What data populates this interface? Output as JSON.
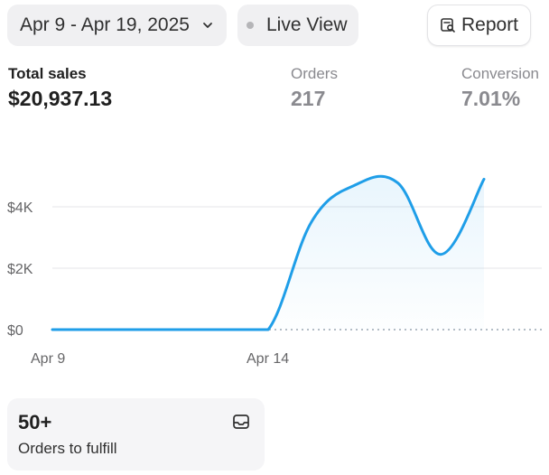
{
  "toolbar": {
    "date_range": "Apr 9 - Apr 19, 2025",
    "live_view": "Live View",
    "report": "Report"
  },
  "metrics": {
    "total_sales": {
      "label": "Total sales",
      "value": "$20,937.13"
    },
    "orders": {
      "label": "Orders",
      "value": "217"
    },
    "conversion": {
      "label": "Conversion",
      "value": "7.01%"
    }
  },
  "chart_data": {
    "type": "area",
    "title": "",
    "xlabel": "",
    "ylabel": "",
    "x_ticks": [
      "Apr 9",
      "Apr 14"
    ],
    "y_ticks": [
      "$0",
      "$2K",
      "$4K"
    ],
    "y_tick_values": [
      0,
      2000,
      4000
    ],
    "ylim": [
      0,
      5000
    ],
    "grid": true,
    "series_color": "#1f9ee8",
    "points": [
      {
        "x": 0,
        "y": 0
      },
      {
        "x": 1,
        "y": 0
      },
      {
        "x": 2,
        "y": 0
      },
      {
        "x": 3,
        "y": 0
      },
      {
        "x": 4,
        "y": 0
      },
      {
        "x": 5,
        "y": 0
      },
      {
        "x": 6,
        "y": 3500
      },
      {
        "x": 7,
        "y": 4700
      },
      {
        "x": 8,
        "y": 4780
      },
      {
        "x": 9,
        "y": 2450
      },
      {
        "x": 10,
        "y": 4900
      }
    ]
  },
  "fulfill": {
    "count": "50+",
    "label": "Orders to fulfill"
  },
  "icons": {
    "date_chevron": "chevron-down-icon",
    "live_status": "status-dot-icon",
    "report": "report-search-icon",
    "fulfill": "inbox-icon"
  }
}
